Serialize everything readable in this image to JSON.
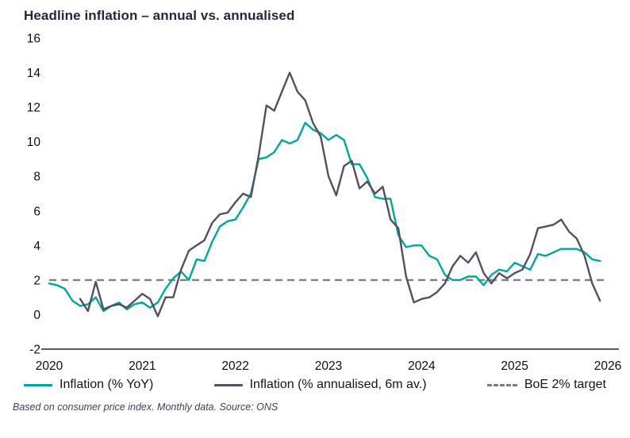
{
  "title": "Headline inflation – annual vs. annualised",
  "footer": "Based on consumer price index. Monthly data. Source: ONS",
  "legend": [
    {
      "label": "Inflation (% YoY)",
      "style": "solid"
    },
    {
      "label": "Inflation (% annualised, 6m av.)",
      "style": "solid"
    },
    {
      "label": "BoE 2% target",
      "style": "dashed"
    }
  ],
  "chart_data": {
    "type": "line",
    "title": "Headline inflation – annual vs. annualised",
    "xlabel": "",
    "ylabel": "",
    "x_range": [
      2020,
      2026
    ],
    "y_range": [
      -2,
      16
    ],
    "x_ticks": [
      2020,
      2021,
      2022,
      2023,
      2024,
      2025,
      2026
    ],
    "y_ticks": [
      16,
      14,
      12,
      10,
      8,
      6,
      4,
      2,
      0,
      -2
    ],
    "grid": false,
    "legend_position": "bottom",
    "step": 0.0833333,
    "axis_color": "#262626",
    "target_value": 2,
    "target_color": "#7f7f7f",
    "target_label": "BoE 2% target",
    "series": [
      {
        "id": "series-inflation-yoy",
        "name": "Inflation (% YoY)",
        "color": "#00a79d",
        "start": 2020.0,
        "values": [
          1.8,
          1.7,
          1.5,
          0.8,
          0.5,
          0.6,
          1.0,
          0.2,
          0.5,
          0.7,
          0.3,
          0.6,
          0.7,
          0.4,
          0.7,
          1.5,
          2.1,
          2.5,
          2.0,
          3.2,
          3.1,
          4.2,
          5.1,
          5.4,
          5.5,
          6.2,
          7.0,
          9.0,
          9.1,
          9.4,
          10.1,
          9.9,
          10.1,
          11.1,
          10.7,
          10.5,
          10.1,
          10.4,
          10.1,
          8.7,
          8.7,
          7.9,
          6.8,
          6.7,
          6.7,
          4.6,
          3.9,
          4.0,
          4.0,
          3.4,
          3.2,
          2.3,
          2.0,
          2.0,
          2.2,
          2.2,
          1.7,
          2.3,
          2.6,
          2.5,
          3.0,
          2.8,
          2.6,
          3.5,
          3.4,
          3.6,
          3.8,
          3.8,
          3.8,
          3.6,
          3.2,
          3.1
        ]
      },
      {
        "id": "series-inflation-annualised-6m",
        "name": "Inflation (% annualised, 6m av.)",
        "color": "#574e5f",
        "start": 2020.3333,
        "values": [
          0.9,
          0.2,
          1.9,
          0.3,
          0.5,
          0.6,
          0.4,
          0.8,
          1.2,
          0.9,
          -0.1,
          1.0,
          1.0,
          2.6,
          3.7,
          4.0,
          4.3,
          5.3,
          5.8,
          5.9,
          6.5,
          7.0,
          6.8,
          9.2,
          12.1,
          11.8,
          12.9,
          14.0,
          12.9,
          12.4,
          11.1,
          10.3,
          8.0,
          6.9,
          8.6,
          8.9,
          7.3,
          7.7,
          7.0,
          7.4,
          5.5,
          5.0,
          2.2,
          0.7,
          0.9,
          1.0,
          1.3,
          1.8,
          2.8,
          3.4,
          3.0,
          3.6,
          2.4,
          1.8,
          2.4,
          2.1,
          2.4,
          2.6,
          3.5,
          5.0,
          5.1,
          5.2,
          5.5,
          4.8,
          4.4,
          3.4,
          1.8,
          0.8
        ]
      }
    ]
  }
}
